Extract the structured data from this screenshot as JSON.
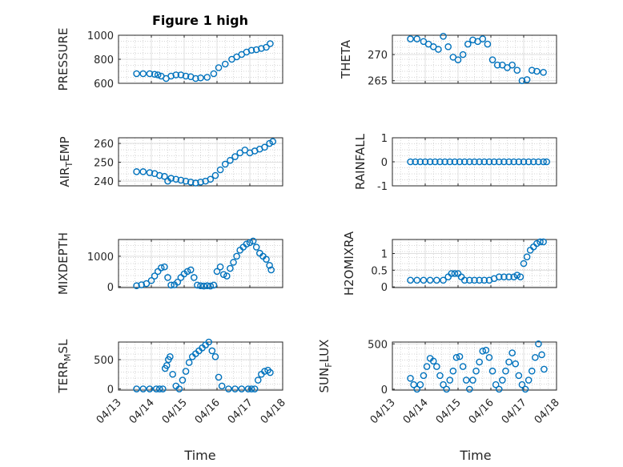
{
  "figure": {
    "title": "Figure 1 high",
    "marker_color": "#0072bd"
  },
  "chart_data": [
    {
      "type": "scatter",
      "title": "Figure 1 high",
      "ylabel": "PRESSURE",
      "xlabel": "",
      "xlim": [
        "04/13",
        "04/18"
      ],
      "ylim": [
        600,
        1000
      ],
      "yticks": [
        "600",
        "800",
        "1000"
      ],
      "xticks": [],
      "grid": true,
      "series": [
        {
          "x": [
            0.55,
            0.75,
            0.95,
            1.1,
            1.2,
            1.3,
            1.45,
            1.6,
            1.75,
            1.9,
            2.05,
            2.2,
            2.35,
            2.5,
            2.7,
            2.9,
            3.05,
            3.25,
            3.45,
            3.6,
            3.75,
            3.9,
            4.05,
            4.2,
            4.35,
            4.5,
            4.62
          ],
          "y": [
            680,
            680,
            680,
            675,
            670,
            660,
            640,
            660,
            670,
            670,
            660,
            655,
            640,
            645,
            650,
            680,
            730,
            760,
            800,
            820,
            840,
            860,
            875,
            880,
            890,
            900,
            930
          ]
        }
      ]
    },
    {
      "type": "scatter",
      "ylabel": "THETA",
      "xlabel": "",
      "xlim": [
        "04/13",
        "04/18"
      ],
      "ylim": [
        264.5,
        273.7
      ],
      "yticks": [
        "265",
        "270"
      ],
      "xticks": [],
      "grid": true,
      "series": [
        {
          "x": [
            0.55,
            0.75,
            0.95,
            1.1,
            1.25,
            1.4,
            1.55,
            1.7,
            1.85,
            2.0,
            2.15,
            2.3,
            2.45,
            2.6,
            2.75,
            2.9,
            3.05,
            3.2,
            3.35,
            3.5,
            3.65,
            3.8,
            3.95,
            4.1,
            4.25,
            4.4,
            4.6
          ],
          "y": [
            273,
            273,
            272.5,
            272,
            271.5,
            271,
            273.5,
            271.5,
            269.5,
            269,
            270,
            272,
            272.8,
            272.5,
            273,
            272,
            269,
            268,
            268,
            267.5,
            268,
            267,
            265,
            265.2,
            267,
            266.8,
            266.6
          ]
        }
      ]
    },
    {
      "type": "scatter",
      "ylabel": "AIR_TEMP",
      "xlabel": "",
      "xlim": [
        "04/13",
        "04/18"
      ],
      "ylim": [
        237.5,
        263
      ],
      "yticks": [
        "240",
        "250",
        "260"
      ],
      "xticks": [],
      "grid": true,
      "series": [
        {
          "x": [
            0.55,
            0.75,
            0.95,
            1.1,
            1.25,
            1.4,
            1.5,
            1.6,
            1.75,
            1.9,
            2.05,
            2.2,
            2.35,
            2.5,
            2.65,
            2.8,
            2.95,
            3.1,
            3.25,
            3.4,
            3.55,
            3.7,
            3.85,
            4.0,
            4.15,
            4.3,
            4.45,
            4.6,
            4.7
          ],
          "y": [
            245,
            245,
            244.5,
            244,
            243,
            242.5,
            240,
            241.5,
            241,
            240.5,
            240,
            239.5,
            239,
            239.5,
            240,
            241,
            243,
            246,
            249,
            251,
            253,
            255,
            256.5,
            255,
            256,
            257,
            258,
            260,
            261
          ]
        }
      ]
    },
    {
      "type": "scatter",
      "ylabel": "RAINFALL",
      "xlabel": "",
      "xlim": [
        "04/13",
        "04/18"
      ],
      "ylim": [
        -1,
        1
      ],
      "yticks": [
        "-1",
        "0",
        "1"
      ],
      "xticks": [],
      "grid": true,
      "series": [
        {
          "x": [
            0.55,
            0.7,
            0.85,
            1.0,
            1.15,
            1.3,
            1.45,
            1.6,
            1.75,
            1.9,
            2.05,
            2.2,
            2.35,
            2.5,
            2.65,
            2.8,
            2.95,
            3.1,
            3.25,
            3.4,
            3.55,
            3.7,
            3.85,
            4.0,
            4.15,
            4.3,
            4.45,
            4.6,
            4.7
          ],
          "y": [
            0,
            0,
            0,
            0,
            0,
            0,
            0,
            0,
            0,
            0,
            0,
            0,
            0,
            0,
            0,
            0,
            0,
            0,
            0,
            0,
            0,
            0,
            0,
            0,
            0,
            0,
            0,
            0,
            0
          ]
        }
      ]
    },
    {
      "type": "scatter",
      "ylabel": "MIXDEPTH",
      "xlabel": "",
      "xlim": [
        "04/13",
        "04/18"
      ],
      "ylim": [
        -30,
        1550
      ],
      "yticks": [
        "0",
        "1000"
      ],
      "xticks": [],
      "grid": true,
      "series": [
        {
          "x": [
            0.55,
            0.7,
            0.85,
            1.0,
            1.1,
            1.2,
            1.3,
            1.4,
            1.5,
            1.6,
            1.7,
            1.8,
            1.9,
            2.0,
            2.1,
            2.2,
            2.3,
            2.4,
            2.5,
            2.6,
            2.7,
            2.8,
            2.9,
            3.0,
            3.1,
            3.2,
            3.3,
            3.4,
            3.5,
            3.6,
            3.7,
            3.8,
            3.9,
            4.0,
            4.1,
            4.2,
            4.3,
            4.4,
            4.5,
            4.6,
            4.65
          ],
          "y": [
            30,
            60,
            100,
            200,
            350,
            500,
            620,
            650,
            300,
            50,
            60,
            150,
            300,
            420,
            500,
            550,
            300,
            50,
            30,
            20,
            30,
            20,
            50,
            500,
            650,
            400,
            350,
            600,
            800,
            1000,
            1200,
            1300,
            1400,
            1450,
            1500,
            1300,
            1100,
            1000,
            900,
            700,
            550
          ]
        }
      ]
    },
    {
      "type": "scatter",
      "ylabel": "H2OMIXRA",
      "xlabel": "",
      "xlim": [
        "04/13",
        "04/18"
      ],
      "ylim": [
        -0.02,
        1.42
      ],
      "yticks": [
        "0",
        "0.5",
        "1"
      ],
      "xticks": [],
      "grid": true,
      "series": [
        {
          "x": [
            0.55,
            0.75,
            0.95,
            1.15,
            1.35,
            1.55,
            1.7,
            1.8,
            1.9,
            2.0,
            2.1,
            2.2,
            2.35,
            2.5,
            2.65,
            2.8,
            2.95,
            3.1,
            3.25,
            3.4,
            3.55,
            3.7,
            3.8,
            3.9,
            4.0,
            4.1,
            4.2,
            4.3,
            4.4,
            4.5,
            4.6
          ],
          "y": [
            0.2,
            0.2,
            0.2,
            0.2,
            0.2,
            0.2,
            0.3,
            0.4,
            0.4,
            0.4,
            0.3,
            0.2,
            0.2,
            0.2,
            0.2,
            0.2,
            0.2,
            0.25,
            0.3,
            0.3,
            0.3,
            0.3,
            0.35,
            0.3,
            0.7,
            0.9,
            1.1,
            1.2,
            1.3,
            1.35,
            1.35
          ]
        }
      ]
    },
    {
      "type": "scatter",
      "ylabel": "TERR_MSL",
      "xlabel": "Time",
      "xlim": [
        "04/13",
        "04/18"
      ],
      "ylim": [
        -20,
        800
      ],
      "yticks": [
        "0",
        "500"
      ],
      "xticks": [
        "04/13",
        "04/14",
        "04/15",
        "04/16",
        "04/17",
        "04/18"
      ],
      "grid": true,
      "series": [
        {
          "x": [
            0.55,
            0.75,
            0.95,
            1.15,
            1.25,
            1.35,
            1.42,
            1.47,
            1.52,
            1.57,
            1.65,
            1.75,
            1.85,
            1.95,
            2.05,
            2.15,
            2.25,
            2.35,
            2.45,
            2.55,
            2.65,
            2.75,
            2.85,
            2.95,
            3.05,
            3.15,
            3.35,
            3.55,
            3.75,
            3.95,
            4.05,
            4.15,
            4.25,
            4.35,
            4.45,
            4.55,
            4.62
          ],
          "y": [
            0,
            0,
            0,
            0,
            0,
            0,
            350,
            400,
            500,
            550,
            250,
            50,
            0,
            150,
            300,
            450,
            550,
            600,
            650,
            700,
            750,
            800,
            650,
            550,
            200,
            50,
            0,
            0,
            0,
            0,
            0,
            0,
            150,
            250,
            300,
            320,
            280
          ]
        }
      ]
    },
    {
      "type": "scatter",
      "ylabel": "SUN_FLUX",
      "xlabel": "Time",
      "xlim": [
        "04/13",
        "04/18"
      ],
      "ylim": [
        -10,
        520
      ],
      "yticks": [
        "0",
        "500"
      ],
      "xticks": [
        "04/13",
        "04/14",
        "04/15",
        "04/16",
        "04/17",
        "04/18"
      ],
      "grid": true,
      "series": [
        {
          "x": [
            0.55,
            0.65,
            0.75,
            0.85,
            0.95,
            1.05,
            1.15,
            1.25,
            1.35,
            1.45,
            1.55,
            1.65,
            1.75,
            1.85,
            1.95,
            2.05,
            2.15,
            2.25,
            2.35,
            2.45,
            2.55,
            2.65,
            2.75,
            2.85,
            2.95,
            3.05,
            3.15,
            3.25,
            3.35,
            3.45,
            3.55,
            3.65,
            3.75,
            3.85,
            3.95,
            4.05,
            4.15,
            4.25,
            4.35,
            4.45,
            4.55,
            4.62
          ],
          "y": [
            120,
            50,
            0,
            50,
            150,
            250,
            340,
            310,
            250,
            150,
            50,
            0,
            100,
            200,
            350,
            360,
            250,
            100,
            0,
            100,
            200,
            300,
            420,
            430,
            350,
            200,
            50,
            0,
            100,
            200,
            300,
            400,
            280,
            150,
            50,
            0,
            100,
            200,
            350,
            500,
            380,
            220
          ]
        }
      ]
    }
  ]
}
